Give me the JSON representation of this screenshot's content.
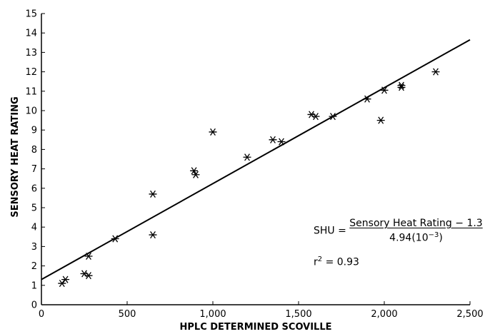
{
  "chart_data": {
    "type": "scatter",
    "xlabel": "HPLC DETERMINED SCOVILLE",
    "ylabel": "SENSORY HEAT RATING",
    "xlim": [
      0,
      2500
    ],
    "ylim": [
      0,
      15
    ],
    "x_ticks": [
      "0",
      "500",
      "1,000",
      "1,500",
      "2,000",
      "2,500"
    ],
    "y_ticks": [
      "0",
      "1",
      "2",
      "3",
      "4",
      "5",
      "6",
      "7",
      "8",
      "9",
      "10",
      "11",
      "12",
      "13",
      "14",
      "15"
    ],
    "marker": "asterisk",
    "grid": false,
    "points": [
      {
        "x": 120,
        "y": 1.1
      },
      {
        "x": 140,
        "y": 1.3
      },
      {
        "x": 250,
        "y": 1.6
      },
      {
        "x": 275,
        "y": 1.5
      },
      {
        "x": 275,
        "y": 2.5
      },
      {
        "x": 430,
        "y": 3.4
      },
      {
        "x": 650,
        "y": 3.6
      },
      {
        "x": 650,
        "y": 5.7
      },
      {
        "x": 890,
        "y": 6.9
      },
      {
        "x": 900,
        "y": 6.7
      },
      {
        "x": 1000,
        "y": 8.9
      },
      {
        "x": 1200,
        "y": 7.6
      },
      {
        "x": 1350,
        "y": 8.5
      },
      {
        "x": 1400,
        "y": 8.4
      },
      {
        "x": 1575,
        "y": 9.8
      },
      {
        "x": 1600,
        "y": 9.7
      },
      {
        "x": 1700,
        "y": 9.7
      },
      {
        "x": 1900,
        "y": 10.6
      },
      {
        "x": 1980,
        "y": 9.5
      },
      {
        "x": 2000,
        "y": 11.05
      },
      {
        "x": 2100,
        "y": 11.3
      },
      {
        "x": 2100,
        "y": 11.2
      },
      {
        "x": 2300,
        "y": 12.0
      }
    ],
    "fit_line": {
      "x": [
        0,
        2500
      ],
      "y": [
        1.3,
        13.65
      ]
    },
    "annotations": {
      "formula_lhs": "SHU = ",
      "formula_numerator": "Sensory Heat Rating − 1.3",
      "formula_denominator_base": "4.94(10",
      "formula_denominator_exp": "−3",
      "formula_denominator_close": ")",
      "r2_label": "r",
      "r2_exp": "2",
      "r2_value": " = 0.93"
    }
  }
}
